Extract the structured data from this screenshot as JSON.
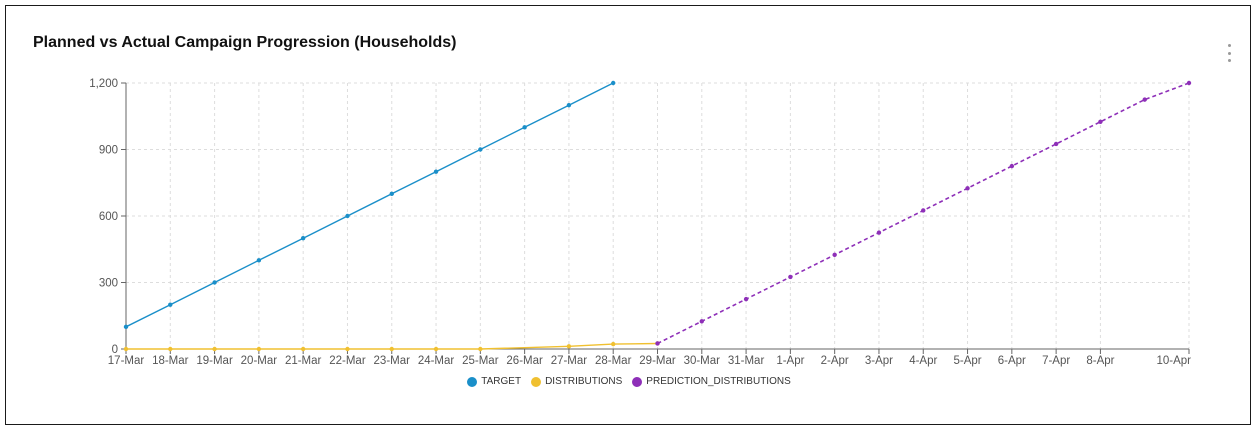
{
  "card": {
    "menu_icon": "more-vertical-icon"
  },
  "chart_data": {
    "type": "line",
    "title": "Planned vs Actual Campaign Progression (Households)",
    "xlabel": "",
    "ylabel": "",
    "x_tick_labels": [
      "17-Mar",
      "18-Mar",
      "19-Mar",
      "20-Mar",
      "21-Mar",
      "22-Mar",
      "23-Mar",
      "24-Mar",
      "25-Mar",
      "26-Mar",
      "27-Mar",
      "28-Mar",
      "29-Mar",
      "30-Mar",
      "31-Mar",
      "1-Apr",
      "2-Apr",
      "3-Apr",
      "4-Apr",
      "5-Apr",
      "6-Apr",
      "7-Apr",
      "8-Apr",
      "10-Apr"
    ],
    "x_range": [
      "2025-03-17",
      "2025-04-10"
    ],
    "ylim": [
      0,
      1200
    ],
    "y_ticks": [
      0,
      300,
      600,
      900,
      1200
    ],
    "y_tick_labels": [
      "0",
      "300",
      "600",
      "900",
      "1,200"
    ],
    "grid": true,
    "legend_position": "bottom-center",
    "series": [
      {
        "name": "TARGET",
        "color": "#1a8fc9",
        "style": "solid",
        "points": [
          [
            "2025-03-17",
            100
          ],
          [
            "2025-03-18",
            200
          ],
          [
            "2025-03-19",
            300
          ],
          [
            "2025-03-20",
            400
          ],
          [
            "2025-03-21",
            500
          ],
          [
            "2025-03-22",
            600
          ],
          [
            "2025-03-23",
            700
          ],
          [
            "2025-03-24",
            800
          ],
          [
            "2025-03-25",
            900
          ],
          [
            "2025-03-26",
            1000
          ],
          [
            "2025-03-27",
            1100
          ],
          [
            "2025-03-28",
            1200
          ]
        ]
      },
      {
        "name": "DISTRIBUTIONS",
        "color": "#f0c030",
        "style": "solid",
        "points": [
          [
            "2025-03-17",
            0
          ],
          [
            "2025-03-18",
            0
          ],
          [
            "2025-03-19",
            0
          ],
          [
            "2025-03-20",
            0
          ],
          [
            "2025-03-21",
            0
          ],
          [
            "2025-03-22",
            0
          ],
          [
            "2025-03-23",
            0
          ],
          [
            "2025-03-24",
            0
          ],
          [
            "2025-03-25",
            0
          ],
          [
            "2025-03-27",
            12
          ],
          [
            "2025-03-28",
            22
          ],
          [
            "2025-03-29",
            25
          ]
        ]
      },
      {
        "name": "PREDICTION_DISTRIBUTIONS",
        "color": "#8e2fb8",
        "style": "dashed",
        "points": [
          [
            "2025-03-29",
            25
          ],
          [
            "2025-03-30",
            125
          ],
          [
            "2025-03-31",
            225
          ],
          [
            "2025-04-01",
            325
          ],
          [
            "2025-04-02",
            425
          ],
          [
            "2025-04-03",
            525
          ],
          [
            "2025-04-04",
            625
          ],
          [
            "2025-04-05",
            725
          ],
          [
            "2025-04-06",
            825
          ],
          [
            "2025-04-07",
            925
          ],
          [
            "2025-04-08",
            1025
          ],
          [
            "2025-04-09",
            1125
          ],
          [
            "2025-04-10",
            1200
          ]
        ]
      }
    ]
  }
}
